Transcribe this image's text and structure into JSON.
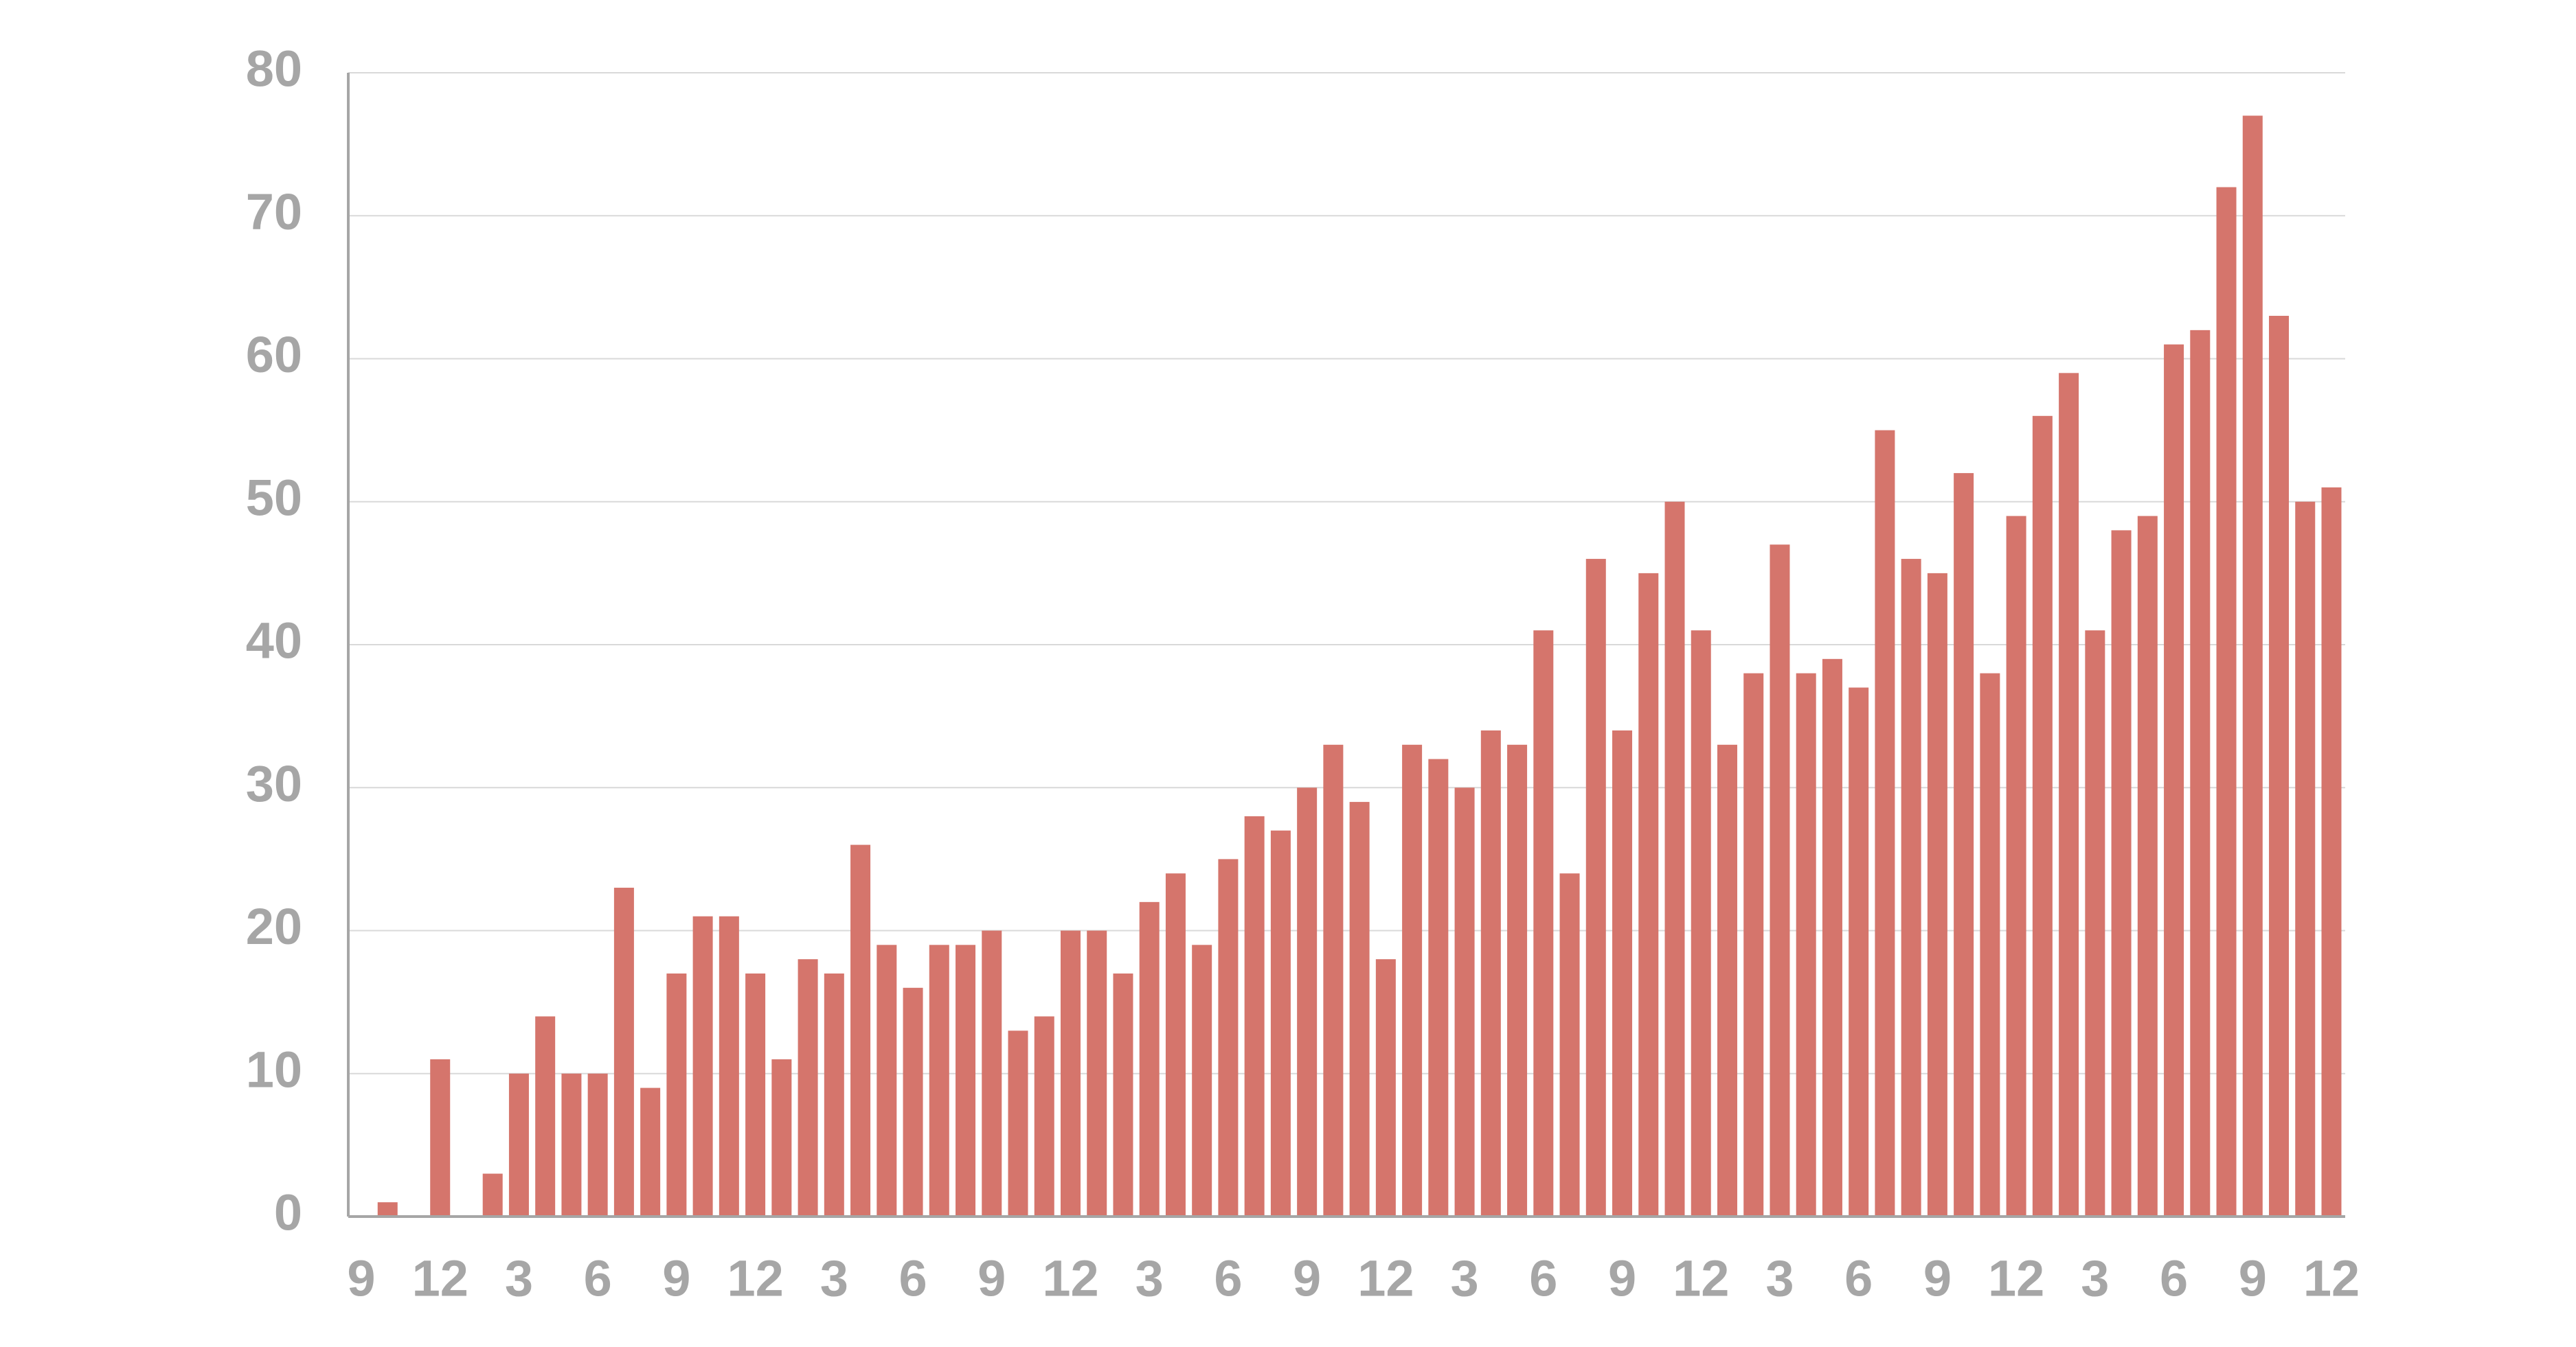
{
  "chart_data": {
    "type": "bar",
    "categories": [
      "9",
      null,
      null,
      "12",
      null,
      null,
      "3",
      null,
      null,
      "6",
      null,
      null,
      "9",
      null,
      null,
      "12",
      null,
      null,
      "3",
      null,
      null,
      "6",
      null,
      null,
      "9",
      null,
      null,
      "12",
      null,
      null,
      "3",
      null,
      null,
      "6",
      null,
      null,
      "9",
      null,
      null,
      "12",
      null,
      null,
      "3",
      null,
      null,
      "6",
      null,
      null,
      "9",
      null,
      null,
      "12",
      null,
      null,
      "3",
      null,
      null,
      "6",
      null,
      null,
      "9",
      null,
      null,
      "12",
      null,
      null,
      "3",
      null,
      null,
      "6",
      null,
      null,
      "9",
      null,
      null,
      "12"
    ],
    "values": [
      0,
      1,
      0,
      11,
      0,
      3,
      10,
      14,
      10,
      10,
      23,
      9,
      17,
      21,
      21,
      17,
      11,
      18,
      17,
      26,
      19,
      16,
      19,
      19,
      20,
      13,
      14,
      20,
      20,
      17,
      22,
      24,
      19,
      25,
      28,
      27,
      30,
      33,
      29,
      18,
      33,
      32,
      30,
      34,
      33,
      41,
      24,
      46,
      34,
      45,
      50,
      41,
      33,
      38,
      47,
      38,
      39,
      37,
      55,
      46,
      45,
      52,
      38,
      49,
      56,
      59,
      41,
      48,
      49,
      61,
      62,
      72,
      77,
      63,
      50,
      51
    ],
    "color": "#d5756c",
    "ylim": [
      0,
      80
    ],
    "yticks": [
      0,
      10,
      20,
      30,
      40,
      50,
      60,
      70,
      80
    ],
    "grid": true
  }
}
